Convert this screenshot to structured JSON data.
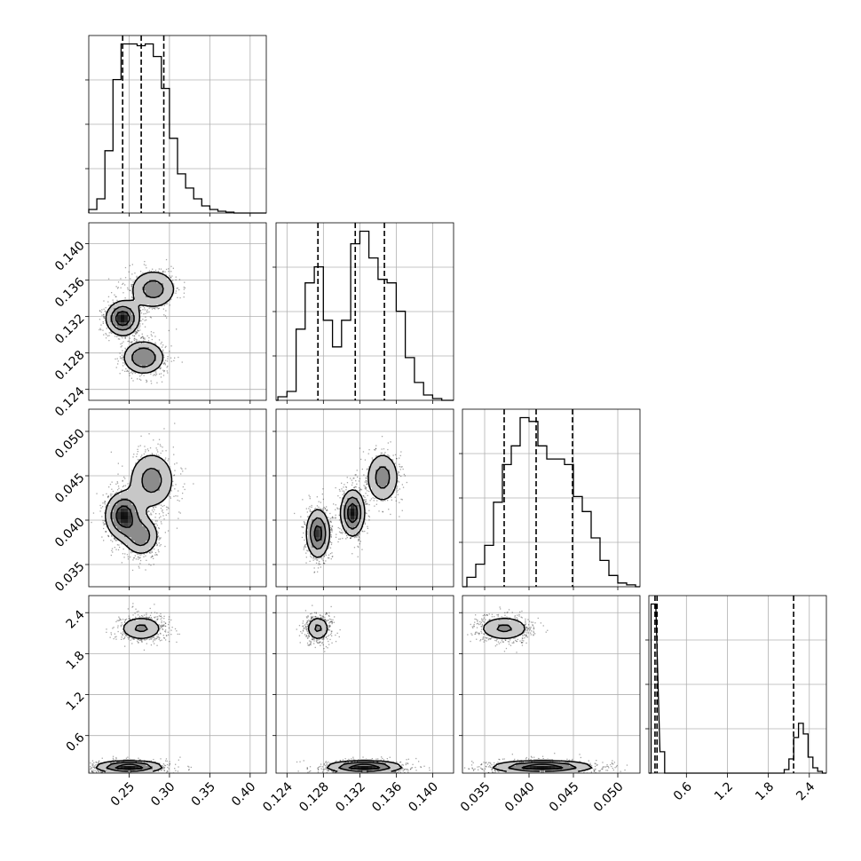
{
  "chart_data": {
    "type": "corner",
    "parameters": [
      {
        "lim": [
          0.2,
          0.42
        ],
        "ticks": [
          0.25,
          0.3,
          0.35,
          0.4
        ],
        "tick_labels": [
          "0.25",
          "0.30",
          "0.35",
          "0.40"
        ],
        "quantiles": [
          0.242,
          0.265,
          0.293
        ]
      },
      {
        "lim": [
          0.1228,
          0.1423
        ],
        "ticks": [
          0.124,
          0.128,
          0.132,
          0.136,
          0.14
        ],
        "tick_labels": [
          "0.124",
          "0.128",
          "0.132",
          "0.136",
          "0.140"
        ],
        "quantiles": [
          0.1274,
          0.1315,
          0.1347
        ]
      },
      {
        "lim": [
          0.0325,
          0.0525
        ],
        "ticks": [
          0.035,
          0.04,
          0.045,
          0.05
        ],
        "tick_labels": [
          "0.035",
          "0.040",
          "0.045",
          "0.050"
        ],
        "quantiles": [
          0.0372,
          0.0408,
          0.0449
        ]
      },
      {
        "lim": [
          0.05,
          2.65
        ],
        "ticks": [
          0.6,
          1.2,
          1.8,
          2.4
        ],
        "tick_labels": [
          "0.6",
          "1.2",
          "1.8",
          "2.4"
        ],
        "quantiles": [
          0.14,
          0.17,
          2.17
        ]
      }
    ],
    "histograms": [
      {
        "x": [
          0.205,
          0.215,
          0.225,
          0.235,
          0.245,
          0.255,
          0.265,
          0.275,
          0.285,
          0.295,
          0.305,
          0.315,
          0.325,
          0.335,
          0.345,
          0.355,
          0.365,
          0.375,
          0.385
        ],
        "counts": [
          2,
          8,
          35,
          75,
          95,
          95,
          94,
          95,
          88,
          70,
          42,
          22,
          14,
          8,
          4,
          2,
          1,
          0.5,
          0
        ]
      },
      {
        "x": [
          0.1235,
          0.1245,
          0.1255,
          0.1265,
          0.1275,
          0.1285,
          0.1295,
          0.1305,
          0.1315,
          0.1325,
          0.1335,
          0.1345,
          0.1355,
          0.1365,
          0.1375,
          0.1385,
          0.1395,
          0.1405
        ],
        "counts": [
          2,
          5,
          40,
          66,
          75,
          45,
          30,
          45,
          88,
          95,
          80,
          68,
          66,
          50,
          24,
          10,
          3,
          1
        ]
      },
      {
        "x": [
          0.0335,
          0.0345,
          0.0355,
          0.0365,
          0.0375,
          0.0385,
          0.0395,
          0.0405,
          0.0415,
          0.0425,
          0.0435,
          0.0445,
          0.0455,
          0.0465,
          0.0475,
          0.0485,
          0.0495,
          0.0505,
          0.0515
        ],
        "counts": [
          5,
          12,
          22,
          45,
          65,
          75,
          90,
          88,
          75,
          68,
          68,
          65,
          48,
          40,
          26,
          14,
          6,
          2,
          1
        ]
      },
      {
        "x": [
          0.117,
          0.247,
          2.067,
          2.137,
          2.207,
          2.277,
          2.347,
          2.417,
          2.487,
          2.557
        ],
        "counts": [
          95,
          12,
          2,
          8,
          20,
          28,
          22,
          9,
          3,
          1
        ]
      }
    ],
    "modes_2d": [
      {
        "row": 1,
        "col": 0,
        "blobs": [
          {
            "cx": 0.242,
            "cy": 0.1318,
            "sx": 0.011,
            "sy": 0.001,
            "w": 1.0
          },
          {
            "cx": 0.28,
            "cy": 0.135,
            "sx": 0.016,
            "sy": 0.0012,
            "w": 0.6
          },
          {
            "cx": 0.268,
            "cy": 0.1275,
            "sx": 0.014,
            "sy": 0.001,
            "w": 0.75
          }
        ]
      },
      {
        "row": 2,
        "col": 0,
        "blobs": [
          {
            "cx": 0.243,
            "cy": 0.0405,
            "sx": 0.012,
            "sy": 0.0014,
            "w": 1.0
          },
          {
            "cx": 0.278,
            "cy": 0.0445,
            "sx": 0.016,
            "sy": 0.0018,
            "w": 0.6
          },
          {
            "cx": 0.265,
            "cy": 0.0382,
            "sx": 0.012,
            "sy": 0.0012,
            "w": 0.65
          }
        ]
      },
      {
        "row": 2,
        "col": 1,
        "blobs": [
          {
            "cx": 0.1274,
            "cy": 0.0385,
            "sx": 0.0007,
            "sy": 0.0015,
            "w": 0.9
          },
          {
            "cx": 0.1312,
            "cy": 0.0408,
            "sx": 0.0007,
            "sy": 0.0014,
            "w": 1.0
          },
          {
            "cx": 0.1345,
            "cy": 0.0448,
            "sx": 0.001,
            "sy": 0.0016,
            "w": 0.6
          }
        ]
      },
      {
        "row": 3,
        "col": 0,
        "blobs": [
          {
            "cx": 0.265,
            "cy": 2.17,
            "sx": 0.015,
            "sy": 0.1,
            "w": 0.5
          },
          {
            "cx": 0.25,
            "cy": 0.14,
            "sx": 0.022,
            "sy": 0.05,
            "w": 1.0
          }
        ]
      },
      {
        "row": 3,
        "col": 1,
        "blobs": [
          {
            "cx": 0.1274,
            "cy": 2.17,
            "sx": 0.0007,
            "sy": 0.1,
            "w": 0.5
          },
          {
            "cx": 0.1325,
            "cy": 0.14,
            "sx": 0.0022,
            "sy": 0.05,
            "w": 1.0
          }
        ]
      },
      {
        "row": 3,
        "col": 2,
        "blobs": [
          {
            "cx": 0.0372,
            "cy": 2.17,
            "sx": 0.0016,
            "sy": 0.1,
            "w": 0.5
          },
          {
            "cx": 0.0415,
            "cy": 0.14,
            "sx": 0.003,
            "sy": 0.05,
            "w": 1.0
          }
        ]
      }
    ],
    "grid": true,
    "legend": "none"
  }
}
